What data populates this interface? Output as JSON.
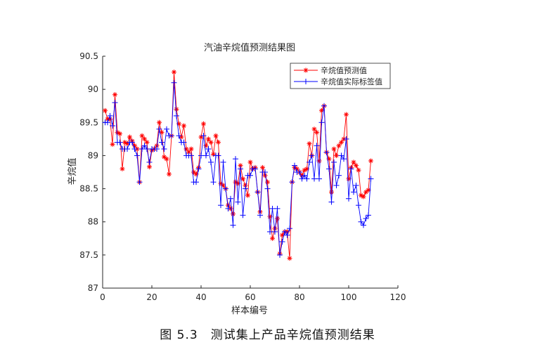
{
  "chart_data": {
    "type": "line",
    "title": "汽油辛烷值预测结果图",
    "xlabel": "样本编号",
    "ylabel": "辛烷值",
    "xlim": [
      0,
      120
    ],
    "ylim": [
      87,
      90.5
    ],
    "xticks": [
      "0",
      "20",
      "40",
      "60",
      "80",
      "100",
      "120"
    ],
    "yticks": [
      "87",
      "87.5",
      "88",
      "88.5",
      "89",
      "89.5",
      "90",
      "90.5"
    ],
    "legend_position": "top-right",
    "series": [
      {
        "name": "辛烷值预测值",
        "color": "#ff0000",
        "marker": "star",
        "x": [
          1,
          2,
          3,
          4,
          5,
          6,
          7,
          8,
          9,
          10,
          11,
          12,
          13,
          14,
          15,
          16,
          17,
          18,
          19,
          20,
          21,
          22,
          23,
          24,
          25,
          26,
          27,
          28,
          29,
          30,
          31,
          32,
          33,
          34,
          35,
          36,
          37,
          38,
          39,
          40,
          41,
          42,
          43,
          44,
          45,
          46,
          47,
          48,
          49,
          50,
          51,
          52,
          53,
          54,
          55,
          56,
          57,
          58,
          59,
          60,
          61,
          62,
          63,
          64,
          65,
          66,
          67,
          68,
          69,
          70,
          71,
          72,
          73,
          74,
          75,
          76,
          77,
          78,
          79,
          80,
          81,
          82,
          83,
          84,
          85,
          86,
          87,
          88,
          89,
          90,
          91,
          92,
          93,
          94,
          95,
          96,
          97,
          98,
          99,
          100,
          101,
          102,
          103,
          104,
          105,
          106,
          107,
          108,
          109
        ],
        "values": [
          89.68,
          89.55,
          89.55,
          89.17,
          89.92,
          89.35,
          89.33,
          88.8,
          89.2,
          89.18,
          89.28,
          89.22,
          89.15,
          89.1,
          88.6,
          89.3,
          89.25,
          89.2,
          88.83,
          89.08,
          89.1,
          89.15,
          89.5,
          89.35,
          88.98,
          88.95,
          88.72,
          89.3,
          90.26,
          89.7,
          89.48,
          89.28,
          89.45,
          89.1,
          89.05,
          89.1,
          88.75,
          88.72,
          88.82,
          89.28,
          89.48,
          89.15,
          89.25,
          89.2,
          89.02,
          89.3,
          89.2,
          88.58,
          88.55,
          88.5,
          88.25,
          88.2,
          88.12,
          88.6,
          88.58,
          88.85,
          88.65,
          88.55,
          88.4,
          88.9,
          88.8,
          88.82,
          88.45,
          88.15,
          88.82,
          88.7,
          88.6,
          88.08,
          87.75,
          87.9,
          88.05,
          87.52,
          87.8,
          87.85,
          87.85,
          87.45,
          88.6,
          88.82,
          88.8,
          88.75,
          88.7,
          88.78,
          88.8,
          89.18,
          89.0,
          89.4,
          89.35,
          88.92,
          89.68,
          89.75,
          89.05,
          88.95,
          88.45,
          89.1,
          89.0,
          89.15,
          89.2,
          89.25,
          89.62,
          88.65,
          88.82,
          88.9,
          88.85,
          88.78,
          88.4,
          88.38,
          88.45,
          88.48,
          88.92
        ]
      },
      {
        "name": "辛烷值实际标签值",
        "color": "#0000ff",
        "marker": "plus",
        "x": [
          1,
          2,
          3,
          4,
          5,
          6,
          7,
          8,
          9,
          10,
          11,
          12,
          13,
          14,
          15,
          16,
          17,
          18,
          19,
          20,
          21,
          22,
          23,
          24,
          25,
          26,
          27,
          28,
          29,
          30,
          31,
          32,
          33,
          34,
          35,
          36,
          37,
          38,
          39,
          40,
          41,
          42,
          43,
          44,
          45,
          46,
          47,
          48,
          49,
          50,
          51,
          52,
          53,
          54,
          55,
          56,
          57,
          58,
          59,
          60,
          61,
          62,
          63,
          64,
          65,
          66,
          67,
          68,
          69,
          70,
          71,
          72,
          73,
          74,
          75,
          76,
          77,
          78,
          79,
          80,
          81,
          82,
          83,
          84,
          85,
          86,
          87,
          88,
          89,
          90,
          91,
          92,
          93,
          94,
          95,
          96,
          97,
          98,
          99,
          100,
          101,
          102,
          103,
          104,
          105,
          106,
          107,
          108,
          109
        ],
        "values": [
          89.5,
          89.5,
          89.6,
          89.45,
          89.8,
          89.2,
          89.2,
          89.1,
          89.1,
          89.1,
          89.2,
          89.2,
          89.1,
          89.0,
          88.6,
          89.1,
          89.15,
          89.1,
          88.9,
          89.1,
          89.1,
          89.1,
          89.4,
          89.2,
          89.1,
          89.4,
          89.3,
          89.3,
          90.1,
          89.6,
          89.3,
          89.2,
          89.2,
          89.0,
          89.0,
          89.0,
          88.6,
          88.6,
          88.8,
          89.0,
          89.3,
          89.0,
          89.1,
          88.9,
          88.6,
          89.0,
          89.0,
          88.25,
          88.9,
          88.5,
          88.2,
          88.35,
          87.95,
          88.95,
          88.3,
          88.8,
          88.1,
          88.5,
          88.7,
          88.7,
          88.8,
          88.8,
          88.45,
          88.1,
          88.75,
          88.75,
          88.5,
          87.85,
          88.2,
          87.85,
          88.2,
          87.5,
          87.7,
          87.85,
          87.8,
          87.9,
          88.6,
          88.85,
          88.75,
          88.75,
          88.65,
          88.7,
          88.65,
          88.9,
          89.0,
          88.65,
          89.15,
          88.65,
          89.5,
          89.75,
          89.05,
          88.8,
          88.3,
          88.9,
          88.55,
          88.7,
          89.0,
          88.95,
          89.25,
          88.35,
          88.8,
          88.45,
          88.55,
          88.25,
          88.0,
          87.95,
          88.05,
          88.1,
          88.65
        ]
      }
    ]
  },
  "caption": "图 5.3　测试集上产品辛烷值预测结果"
}
